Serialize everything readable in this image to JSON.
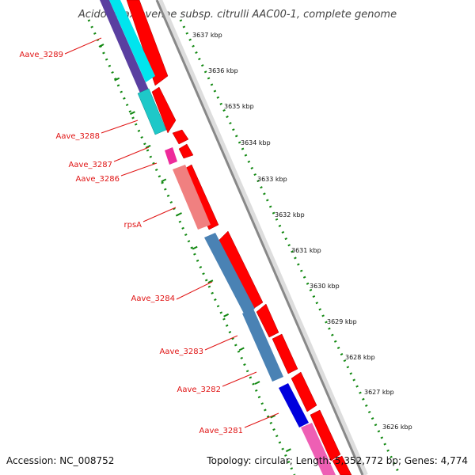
{
  "title": "Acidovorax avenae subsp. citrulli AAC00-1, complete genome",
  "footer": {
    "accession": "Accession: NC_008752",
    "summary": "Topology: circular; Length: 5,352,772 bp; Genes: 4,774"
  },
  "colors": {
    "forward_cds": "#ff0000",
    "backbone": "#888888",
    "label": "#e01414",
    "tick": "#118811"
  },
  "kbp_ticks": [
    "3637 kbp",
    "3636 kbp",
    "3635 kbp",
    "3634 kbp",
    "3633 kbp",
    "3632 kbp",
    "3631 kbp",
    "3630 kbp",
    "3629 kbp",
    "3628 kbp",
    "3627 kbp",
    "3626 kbp"
  ],
  "genes": [
    {
      "label": "Aave_3289"
    },
    {
      "label": "Aave_3288"
    },
    {
      "label": "Aave_3287"
    },
    {
      "label": "Aave_3286"
    },
    {
      "label": "rpsA"
    },
    {
      "label": "Aave_3284"
    },
    {
      "label": "Aave_3283"
    },
    {
      "label": "Aave_3282"
    },
    {
      "label": "Aave_3281"
    }
  ]
}
